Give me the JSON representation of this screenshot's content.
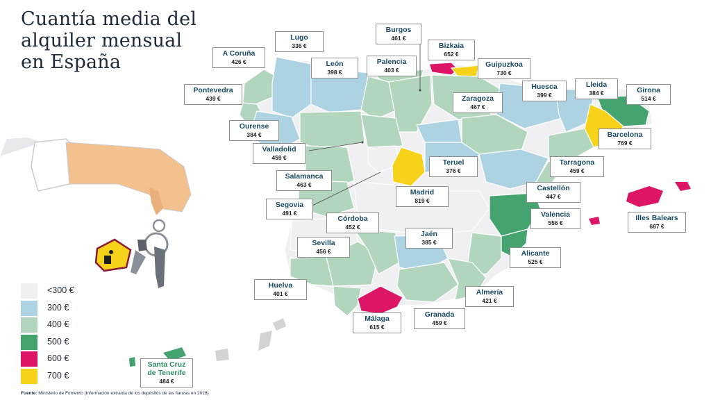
{
  "title_lines": [
    "Cuantía media del",
    "alquiler mensual",
    "en España"
  ],
  "legend": [
    {
      "label": "<300 €",
      "color": "#f0eff2"
    },
    {
      "label": "300 €",
      "color": "#add3e2"
    },
    {
      "label": "400 €",
      "color": "#b2d5be"
    },
    {
      "label": "500 €",
      "color": "#45a370"
    },
    {
      "label": "600 €",
      "color": "#dc1566"
    },
    {
      "label": "700 €",
      "color": "#f7d21a"
    }
  ],
  "provinces": [
    {
      "key": "lugo",
      "name": "Lugo",
      "value": "336 €"
    },
    {
      "key": "a_coruna",
      "name": "A Coruña",
      "value": "426 €"
    },
    {
      "key": "leon",
      "name": "León",
      "value": "398 €"
    },
    {
      "key": "burgos",
      "name": "Burgos",
      "value": "461 €"
    },
    {
      "key": "palencia",
      "name": "Palencia",
      "value": "403 €"
    },
    {
      "key": "bizkaia",
      "name": "Bizkaia",
      "value": "652 €"
    },
    {
      "key": "guipuzkoa",
      "name": "Guipuzkoa",
      "value": "730 €"
    },
    {
      "key": "pontevedra",
      "name": "Pontevedra",
      "value": "439 €"
    },
    {
      "key": "huesca",
      "name": "Huesca",
      "value": "399 €"
    },
    {
      "key": "lleida",
      "name": "Lleida",
      "value": "384 €"
    },
    {
      "key": "girona",
      "name": "Girona",
      "value": "514 €"
    },
    {
      "key": "zaragoza",
      "name": "Zaragoza",
      "value": "467 €"
    },
    {
      "key": "ourense",
      "name": "Ourense",
      "value": "384 €"
    },
    {
      "key": "barcelona",
      "name": "Barcelona",
      "value": "769 €"
    },
    {
      "key": "valladolid",
      "name": "Valladolid",
      "value": "459 €"
    },
    {
      "key": "teruel",
      "name": "Teruel",
      "value": "376 €"
    },
    {
      "key": "tarragona",
      "name": "Tarragona",
      "value": "459 €"
    },
    {
      "key": "salamanca",
      "name": "Salamanca",
      "value": "463 €"
    },
    {
      "key": "madrid",
      "name": "Madrid",
      "value": "819 €"
    },
    {
      "key": "castellon",
      "name": "Castellón",
      "value": "447 €"
    },
    {
      "key": "segovia",
      "name": "Segovia",
      "value": "491 €"
    },
    {
      "key": "illes_balears",
      "name": "Illes Balears",
      "value": "687 €"
    },
    {
      "key": "cordoba",
      "name": "Córdoba",
      "value": "452 €"
    },
    {
      "key": "valencia",
      "name": "Valencia",
      "value": "556 €"
    },
    {
      "key": "jaen",
      "name": "Jaén",
      "value": "385 €"
    },
    {
      "key": "sevilla",
      "name": "Sevilla",
      "value": "456 €"
    },
    {
      "key": "alicante",
      "name": "Alicante",
      "value": "525 €"
    },
    {
      "key": "huelva",
      "name": "Huelva",
      "value": "401 €"
    },
    {
      "key": "almeria",
      "name": "Almería",
      "value": "421 €"
    },
    {
      "key": "malaga",
      "name": "Málaga",
      "value": "615 €"
    },
    {
      "key": "granada",
      "name": "Granada",
      "value": "459 €"
    },
    {
      "key": "santa_cruz",
      "name": "Santa Cruz\nde Tenerife",
      "value": "484 €"
    }
  ],
  "source_label": "Fuente:",
  "source_text": "Ministerio de Fomento (Información extraída de los depósitos de las fianzas en 2018)"
}
